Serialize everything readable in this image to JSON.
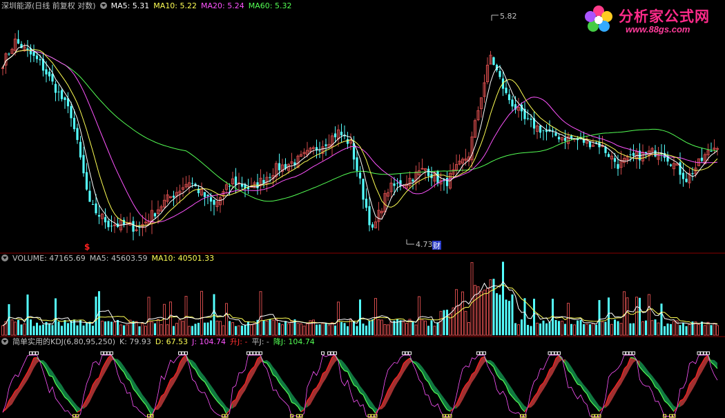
{
  "colors": {
    "up": "#d04a4a",
    "down": "#54ffff",
    "ma5": "#ffffff",
    "ma10": "#ffff54",
    "ma20": "#ff54ff",
    "ma60": "#54ff54",
    "k_line": "#ff2020",
    "j_line": "#ff54ff",
    "d_line": "#54ff54",
    "fill_up": "#a03030",
    "fill_down": "#107840",
    "divider": "#8a0000"
  },
  "main_panel": {
    "title": "深圳能源(日线 前复权 对数)",
    "ma_labels": [
      {
        "text": "MA5: 5.31",
        "color": "#ffffff"
      },
      {
        "text": "MA10: 5.22",
        "color": "#ffff54"
      },
      {
        "text": "MA20: 5.24",
        "color": "#ff54ff"
      },
      {
        "text": "MA60: 5.32",
        "color": "#54ff54"
      }
    ],
    "annotations": [
      {
        "text": "5.82",
        "type": "high"
      },
      {
        "text": "4.73",
        "type": "low"
      },
      {
        "text": "财",
        "type": "marker"
      },
      {
        "text": "$",
        "type": "marker"
      }
    ]
  },
  "volume_panel": {
    "labels": [
      {
        "text": "VOLUME: 47165.69",
        "color": "#c0c0c0"
      },
      {
        "text": "MA5: 45603.59",
        "color": "#c0c0c0"
      },
      {
        "text": "MA10: 40501.33",
        "color": "#ffff54"
      }
    ]
  },
  "kdj_panel": {
    "labels": [
      {
        "text": "简单实用的KDJ(6,80,95,250)",
        "color": "#c0c0c0"
      },
      {
        "text": "K: 79.93",
        "color": "#c0c0c0"
      },
      {
        "text": "D: 67.53",
        "color": "#ffff54"
      },
      {
        "text": "J: 104.74",
        "color": "#ff54ff"
      },
      {
        "text": "升J: -",
        "color": "#ff3030"
      },
      {
        "text": "平J: -",
        "color": "#c0c0c0"
      },
      {
        "text": "降J: 104.74",
        "color": "#54ff54"
      }
    ]
  },
  "watermark": {
    "title": "分析家公式网",
    "url": "www.88gs.com"
  },
  "chart_data": [
    {
      "type": "candlestick",
      "scale": "log",
      "ylim": [
        4.7,
        5.9
      ],
      "anchors": [
        {
          "x": 0,
          "close": 5.62
        },
        {
          "x": 4,
          "close": 5.74
        },
        {
          "x": 12,
          "close": 5.62
        },
        {
          "x": 22,
          "close": 5.35
        },
        {
          "x": 28,
          "close": 4.9
        },
        {
          "x": 34,
          "close": 4.82
        },
        {
          "x": 44,
          "close": 4.8
        },
        {
          "x": 52,
          "close": 4.92
        },
        {
          "x": 60,
          "close": 5.02
        },
        {
          "x": 68,
          "close": 4.9
        },
        {
          "x": 74,
          "close": 5.02
        },
        {
          "x": 80,
          "close": 4.98
        },
        {
          "x": 88,
          "close": 5.08
        },
        {
          "x": 95,
          "close": 5.12
        },
        {
          "x": 103,
          "close": 5.2
        },
        {
          "x": 108,
          "close": 5.26
        },
        {
          "x": 112,
          "close": 5.2
        },
        {
          "x": 116,
          "close": 4.95
        },
        {
          "x": 119,
          "close": 4.78
        },
        {
          "x": 124,
          "close": 4.98
        },
        {
          "x": 130,
          "close": 5.02
        },
        {
          "x": 136,
          "close": 5.08
        },
        {
          "x": 142,
          "close": 5.0
        },
        {
          "x": 150,
          "close": 5.15
        },
        {
          "x": 154,
          "close": 5.45
        },
        {
          "x": 157,
          "close": 5.66
        },
        {
          "x": 162,
          "close": 5.45
        },
        {
          "x": 168,
          "close": 5.32
        },
        {
          "x": 176,
          "close": 5.25
        },
        {
          "x": 185,
          "close": 5.22
        },
        {
          "x": 192,
          "close": 5.2
        },
        {
          "x": 198,
          "close": 5.1
        },
        {
          "x": 204,
          "close": 5.14
        },
        {
          "x": 212,
          "close": 5.17
        },
        {
          "x": 220,
          "close": 5.03
        },
        {
          "x": 226,
          "close": 5.14
        },
        {
          "x": 230,
          "close": 5.2
        }
      ],
      "n_bars": 231,
      "moving_averages": [
        5,
        10,
        20,
        60
      ],
      "high_marker": 5.82,
      "low_marker": 4.73
    },
    {
      "type": "bar",
      "series_name": "VOLUME",
      "latest": 47165.69,
      "ma5": 45603.59,
      "ma10": 40501.33
    },
    {
      "type": "line",
      "series_name": "KDJ",
      "params": "6,80,95,250",
      "latest": {
        "K": 79.93,
        "D": 67.53,
        "J": 104.74
      },
      "ylim": [
        0,
        100
      ]
    }
  ]
}
